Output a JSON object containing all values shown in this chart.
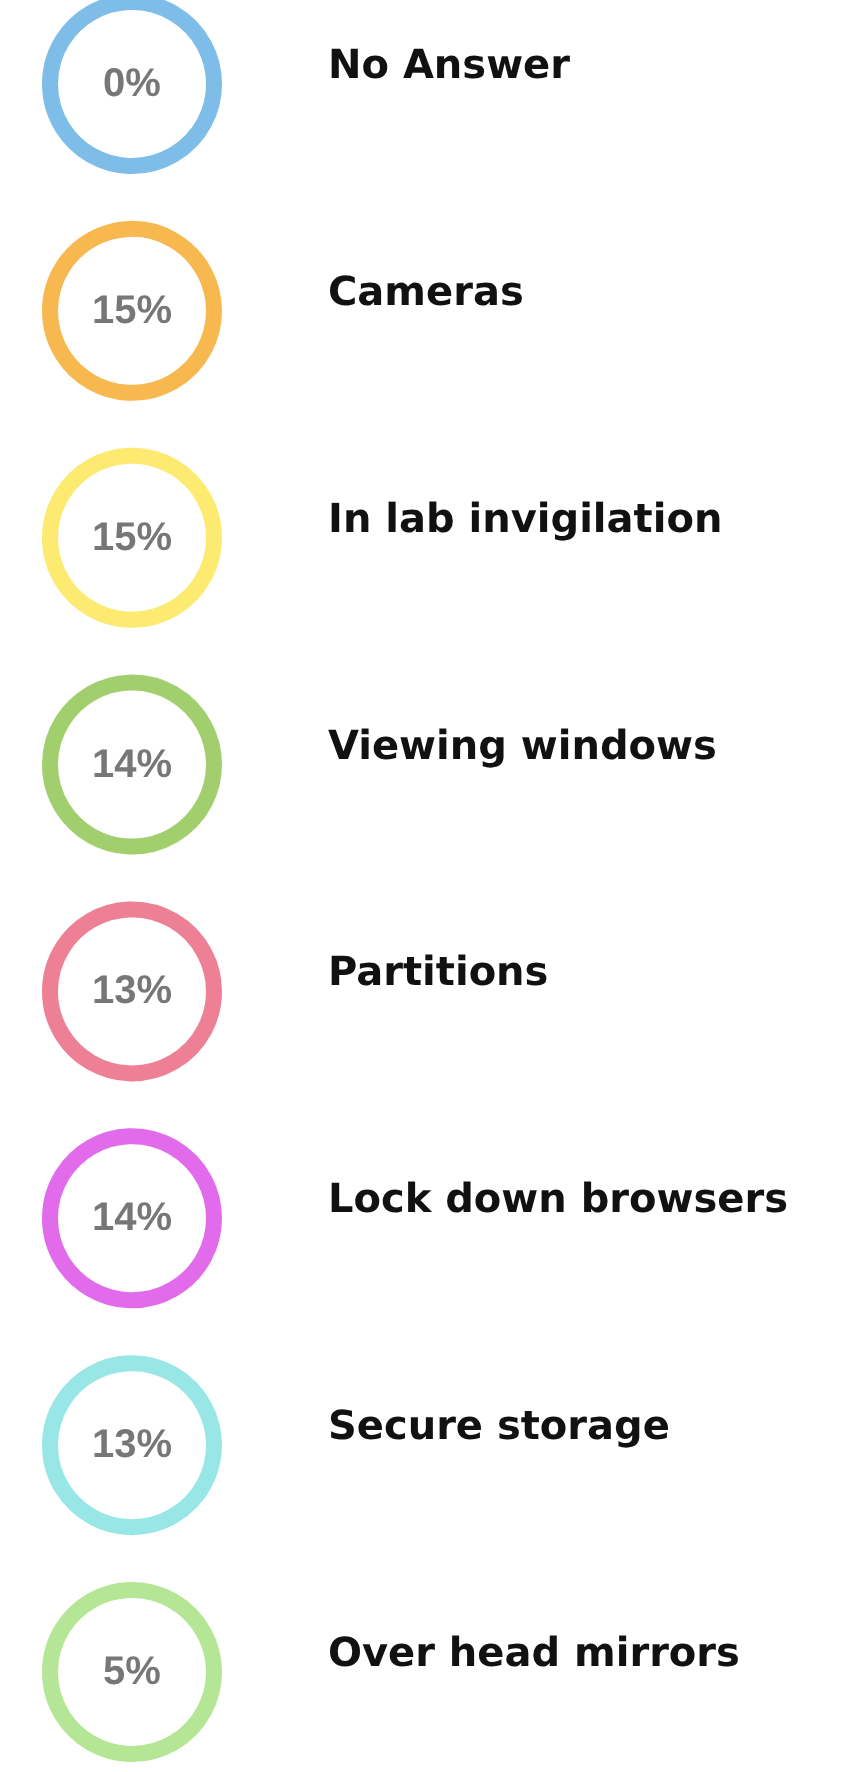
{
  "chart_data": {
    "type": "other",
    "categories": [
      "No Answer",
      "Cameras",
      "In lab invigilation",
      "Viewing windows",
      "Partitions",
      "Lock down browsers",
      "Secure storage",
      "Over head mirrors"
    ],
    "values": [
      0,
      15,
      15,
      14,
      13,
      14,
      13,
      5
    ],
    "value_labels": [
      "0%",
      "15%",
      "15%",
      "14%",
      "13%",
      "14%",
      "13%",
      "5%"
    ],
    "colors": [
      "#5dade2",
      "#f5a623",
      "#fbe54d",
      "#8bc34a",
      "#e9607a",
      "#d946e6",
      "#7ee0e0",
      "#a3e07a"
    ]
  }
}
